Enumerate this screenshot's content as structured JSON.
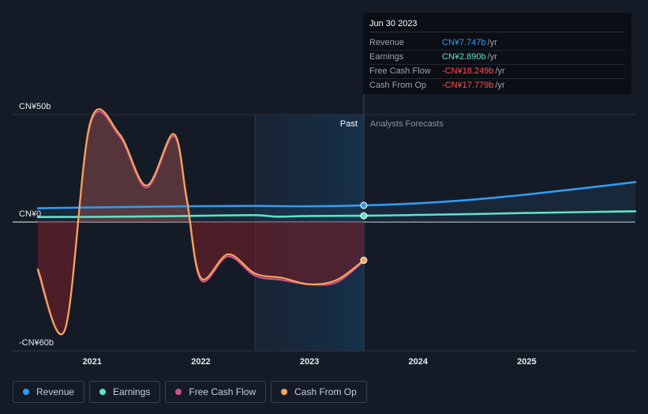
{
  "tooltip": {
    "date": "Jun 30 2023",
    "rows": [
      {
        "label": "Revenue",
        "value": "CN¥7.747b",
        "unit": "/yr",
        "color": "#2f9bf0"
      },
      {
        "label": "Earnings",
        "value": "CN¥2.890b",
        "unit": "/yr",
        "color": "#5fe0c8"
      },
      {
        "label": "Free Cash Flow",
        "value": "-CN¥18.249b",
        "unit": "/yr",
        "color": "#ff4d4d"
      },
      {
        "label": "Cash From Op",
        "value": "-CN¥17.779b",
        "unit": "/yr",
        "color": "#ff4d4d"
      }
    ]
  },
  "legend": [
    {
      "label": "Revenue",
      "color": "#2f9bf0"
    },
    {
      "label": "Earnings",
      "color": "#5fe0c8"
    },
    {
      "label": "Free Cash Flow",
      "color": "#d0508a"
    },
    {
      "label": "Cash From Op",
      "color": "#f2a65a"
    }
  ],
  "chart_data": {
    "type": "line",
    "ylim": [
      -60,
      50
    ],
    "xlim": [
      2020.5,
      2026.0
    ],
    "y_tick_labels": [
      {
        "value": 50,
        "label": "CN¥50b"
      },
      {
        "value": 0,
        "label": "CN¥0"
      },
      {
        "value": -60,
        "label": "-CN¥60b"
      }
    ],
    "x_tick_labels": [
      {
        "value": 2021,
        "label": "2021"
      },
      {
        "value": 2022,
        "label": "2022"
      },
      {
        "value": 2023,
        "label": "2023"
      },
      {
        "value": 2024,
        "label": "2024"
      },
      {
        "value": 2025,
        "label": "2025"
      }
    ],
    "past_label": "Past",
    "forecast_label": "Analysts Forecasts",
    "divider_x": 2023.5,
    "shade_start_x": 2022.5,
    "series": [
      {
        "name": "Revenue",
        "color": "#2f9bf0",
        "x": [
          2020.5,
          2021.0,
          2021.5,
          2022.0,
          2022.5,
          2023.0,
          2023.5,
          2024.0,
          2024.5,
          2025.0,
          2025.5,
          2026.0
        ],
        "values": [
          6.4,
          6.8,
          7.1,
          7.4,
          7.5,
          7.3,
          7.75,
          8.7,
          10.4,
          12.8,
          15.6,
          18.6
        ]
      },
      {
        "name": "Earnings",
        "color": "#5fe0c8",
        "x": [
          2020.5,
          2021.0,
          2021.5,
          2022.0,
          2022.5,
          2022.7,
          2023.0,
          2023.5,
          2024.0,
          2024.5,
          2025.0,
          2025.5,
          2026.0
        ],
        "values": [
          2.3,
          2.4,
          2.6,
          2.9,
          3.2,
          2.5,
          2.8,
          2.9,
          3.3,
          3.7,
          4.2,
          4.6,
          5.0
        ]
      },
      {
        "name": "Free Cash Flow",
        "color": "#d0508a",
        "x": [
          2020.5,
          2020.75,
          2020.98,
          2021.25,
          2021.5,
          2021.75,
          2021.87,
          2022.0,
          2022.25,
          2022.5,
          2022.75,
          2023.0,
          2023.25,
          2023.5
        ],
        "values": [
          -23,
          -50,
          45,
          40,
          16,
          40,
          10,
          -27,
          -16,
          -25,
          -27,
          -29,
          -28,
          -18.2
        ]
      },
      {
        "name": "Cash From Op",
        "color": "#f2a65a",
        "x": [
          2020.5,
          2020.75,
          2020.98,
          2021.25,
          2021.5,
          2021.75,
          2021.87,
          2022.0,
          2022.25,
          2022.5,
          2022.75,
          2023.0,
          2023.25,
          2023.5
        ],
        "values": [
          -22,
          -50,
          46,
          41,
          17,
          41,
          11,
          -26,
          -15,
          -24,
          -26,
          -29,
          -27,
          -17.8
        ]
      }
    ]
  }
}
